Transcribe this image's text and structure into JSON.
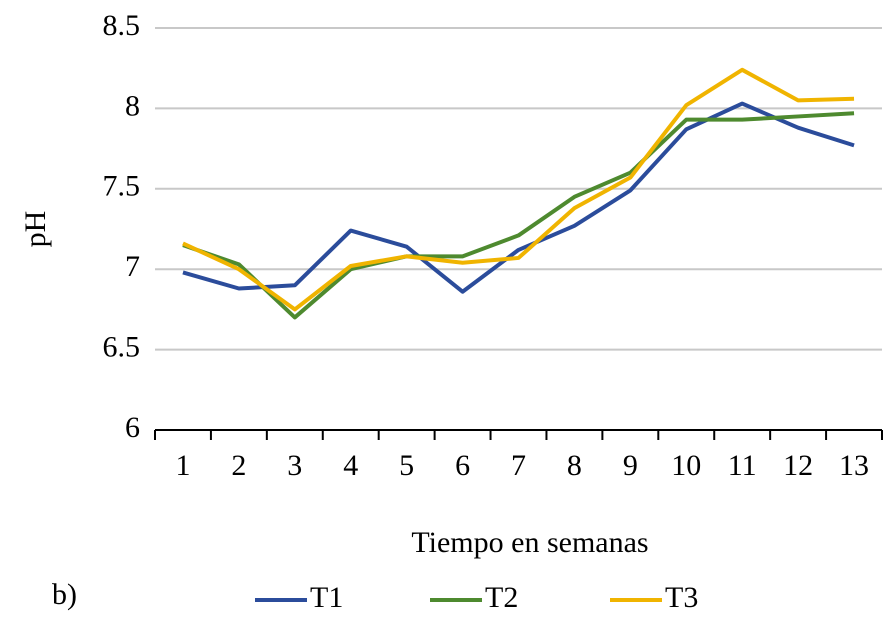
{
  "chart_data": {
    "type": "line",
    "annotation": "b)",
    "x_label": "Tiempo en semanas",
    "y_label": "pH",
    "categories": [
      "1",
      "2",
      "3",
      "4",
      "5",
      "6",
      "7",
      "8",
      "9",
      "10",
      "11",
      "12",
      "13"
    ],
    "ylim": [
      6,
      8.5
    ],
    "yticks": [
      6,
      6.5,
      7,
      7.5,
      8,
      8.5
    ],
    "grid": true,
    "legend": "bottom",
    "series": [
      {
        "name": "T1",
        "color": "#2b4c9b",
        "values": [
          6.98,
          6.88,
          6.9,
          7.24,
          7.14,
          6.86,
          7.12,
          7.27,
          7.49,
          7.87,
          8.03,
          7.88,
          7.77
        ]
      },
      {
        "name": "T2",
        "color": "#4e8a2f",
        "values": [
          7.15,
          7.03,
          6.7,
          7.0,
          7.08,
          7.08,
          7.21,
          7.45,
          7.6,
          7.93,
          7.93,
          7.95,
          7.97
        ]
      },
      {
        "name": "T3",
        "color": "#f0b400",
        "values": [
          7.16,
          7.0,
          6.75,
          7.02,
          7.08,
          7.04,
          7.07,
          7.38,
          7.57,
          8.02,
          8.24,
          8.05,
          8.06
        ]
      }
    ]
  }
}
